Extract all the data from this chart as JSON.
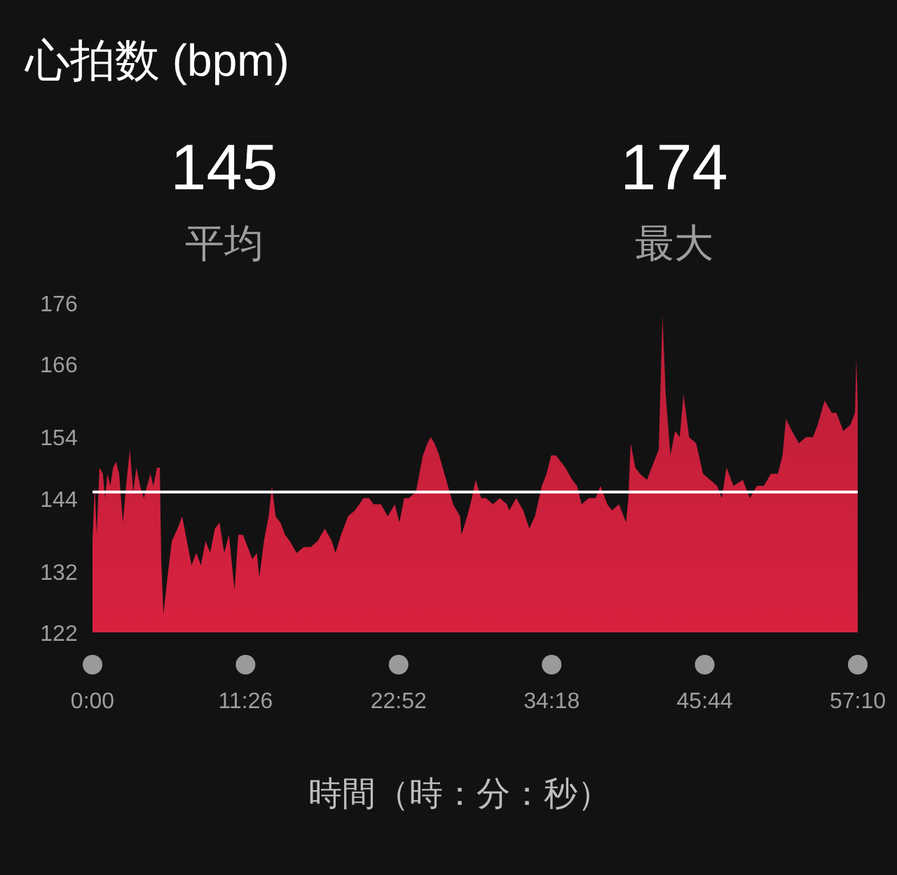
{
  "chart_data": {
    "type": "area",
    "title": "心拍数 (bpm)",
    "xlabel": "時間（時：分：秒）",
    "annotations": [
      "145",
      "平均",
      "174",
      "最大"
    ],
    "xlim": [
      0,
      57.1667
    ],
    "xticks": [
      {
        "value": 0,
        "label": "0:00"
      },
      {
        "value": 11.4333,
        "label": "11:26"
      },
      {
        "value": 22.8667,
        "label": "22:52"
      },
      {
        "value": 34.3,
        "label": "34:18"
      },
      {
        "value": 45.7333,
        "label": "45:44"
      },
      {
        "value": 57.1667,
        "label": "57:10"
      }
    ],
    "ylim": [
      122,
      176
    ],
    "yticks": [
      122,
      132,
      144,
      154,
      166,
      176
    ],
    "grid": false,
    "ref_lines": [
      {
        "axis": "y",
        "value": 145,
        "color": "#ffffff"
      }
    ],
    "series": [
      {
        "color": "#d8213f",
        "x": [
          0.0,
          0.17,
          0.31,
          0.52,
          0.77,
          0.94,
          1.12,
          1.33,
          1.54,
          1.75,
          1.99,
          2.27,
          2.51,
          2.79,
          3.04,
          3.28,
          3.56,
          3.84,
          4.08,
          4.33,
          4.54,
          4.82,
          5.03,
          5.13,
          5.3,
          5.65,
          5.93,
          6.35,
          6.7,
          7.05,
          7.4,
          7.75,
          8.1,
          8.45,
          8.79,
          9.14,
          9.49,
          9.84,
          10.19,
          10.61,
          10.89,
          11.24,
          11.59,
          11.94,
          12.28,
          12.46,
          12.81,
          13.16,
          13.4,
          13.68,
          14.03,
          14.38,
          14.73,
          15.25,
          15.78,
          16.3,
          16.83,
          17.35,
          17.87,
          18.15,
          18.57,
          19.09,
          19.61,
          20.24,
          20.66,
          21.01,
          21.54,
          22.06,
          22.58,
          22.93,
          23.28,
          23.63,
          24.16,
          24.68,
          25.02,
          25.27,
          25.55,
          25.9,
          26.42,
          26.94,
          27.46,
          27.57,
          27.99,
          28.34,
          28.62,
          29.04,
          29.39,
          29.91,
          30.43,
          30.96,
          31.13,
          31.65,
          32.18,
          32.63,
          33.05,
          33.57,
          33.92,
          34.27,
          34.62,
          34.97,
          35.32,
          35.84,
          36.19,
          36.54,
          37.06,
          37.59,
          37.94,
          38.46,
          38.81,
          39.33,
          39.86,
          40.03,
          40.2,
          40.55,
          40.9,
          41.42,
          41.77,
          42.3,
          42.58,
          42.82,
          43.17,
          43.52,
          43.87,
          44.15,
          44.57,
          45.09,
          45.61,
          46.14,
          46.66,
          47.01,
          47.36,
          47.88,
          48.58,
          49.1,
          49.63,
          50.15,
          50.68,
          51.2,
          51.55,
          51.8,
          52.25,
          52.77,
          53.3,
          53.82,
          54.17,
          54.69,
          55.22,
          55.57,
          56.09,
          56.62,
          56.96,
          57.06,
          57.16
        ],
        "values": [
          137,
          146,
          138,
          149,
          148,
          144,
          148,
          146,
          149,
          150,
          148,
          140,
          146,
          152,
          145,
          149,
          146,
          144,
          146,
          148,
          146,
          149,
          149,
          134,
          125,
          132,
          137,
          139,
          141,
          137,
          133,
          135,
          133,
          137,
          135,
          139,
          140,
          135,
          138,
          129,
          138,
          138,
          136,
          134,
          135,
          131,
          137,
          141,
          146,
          141,
          140,
          138,
          137,
          135,
          136,
          136,
          137,
          139,
          137,
          135,
          138,
          141,
          142,
          144,
          144,
          143,
          143,
          141,
          143,
          140,
          144,
          144,
          145,
          151,
          153,
          154,
          153,
          151,
          147,
          143,
          141,
          138,
          141,
          144,
          147,
          144,
          144,
          143,
          144,
          143,
          142,
          144,
          142,
          139,
          141,
          146,
          148,
          151,
          151,
          150,
          149,
          147,
          146,
          143,
          144,
          144,
          146,
          143,
          142,
          143,
          140,
          144,
          153,
          149,
          148,
          147,
          149,
          152,
          174,
          161,
          151,
          155,
          154,
          161,
          154,
          153,
          148,
          147,
          146,
          144,
          149,
          146,
          147,
          144,
          146,
          146,
          148,
          148,
          151,
          157,
          155,
          153,
          154,
          154,
          156,
          160,
          158,
          158,
          155,
          156,
          158,
          167,
          160
        ]
      }
    ]
  }
}
